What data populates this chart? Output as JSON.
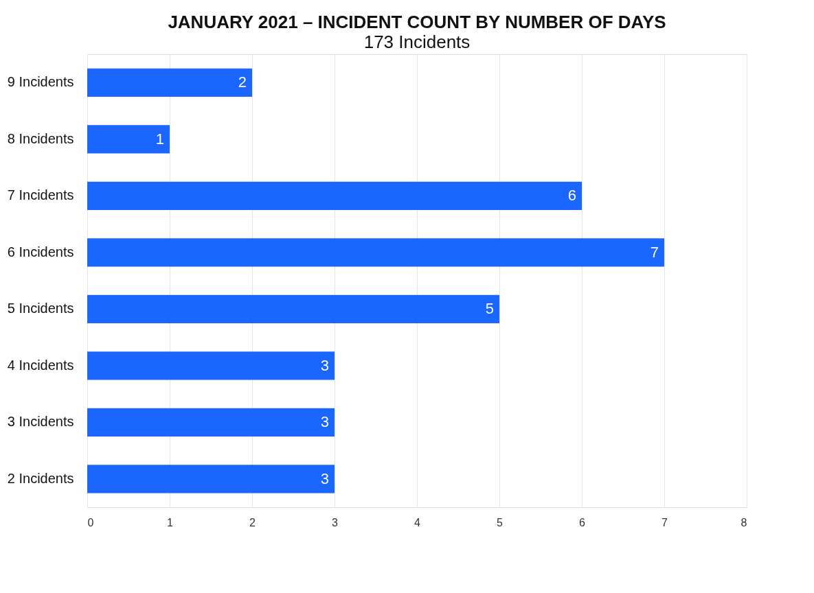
{
  "chart_data": {
    "type": "bar",
    "orientation": "horizontal",
    "title": "JANUARY 2021 – INCIDENT COUNT BY NUMBER OF DAYS",
    "subtitle": "173 Incidents",
    "categories": [
      "9 Incidents",
      "8 Incidents",
      "7 Incidents",
      "6 Incidents",
      "5 Incidents",
      "4 Incidents",
      "3 Incidents",
      "2 Incidents"
    ],
    "values": [
      2,
      1,
      6,
      7,
      5,
      3,
      3,
      3
    ],
    "color": "#1a66ff",
    "xlim": [
      0,
      8
    ],
    "xticks": [
      0,
      1,
      2,
      3,
      4,
      5,
      6,
      7,
      8
    ],
    "grid": "x",
    "data_labels": true
  }
}
